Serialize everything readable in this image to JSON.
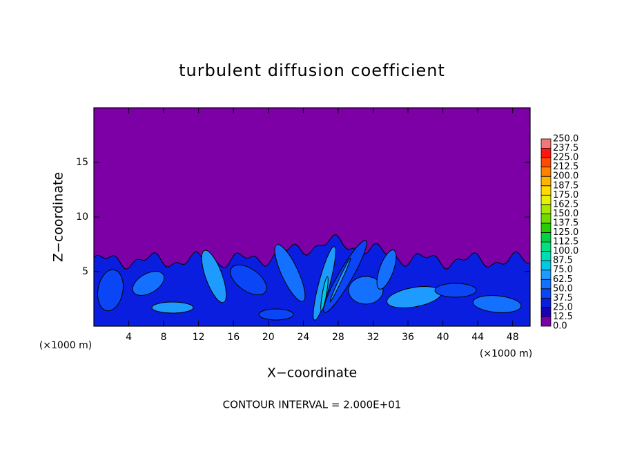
{
  "chart_data": {
    "type": "contour",
    "title": "turbulent diffusion coefficient",
    "xlabel": "X−coordinate",
    "ylabel": "Z−coordinate",
    "x_unit": "(×1000 m)",
    "y_unit": "(×1000 m)",
    "footer": "CONTOUR INTERVAL = 2.000E+01",
    "xlim": [
      0,
      50
    ],
    "xticks": [
      4,
      8,
      12,
      16,
      20,
      24,
      28,
      32,
      36,
      40,
      44,
      48
    ],
    "ylim": [
      0,
      20
    ],
    "yticks": [
      5,
      10,
      15
    ],
    "colorbar_levels": [
      {
        "value": 0,
        "label": "0.0"
      },
      {
        "value": 12.5,
        "label": "12.5"
      },
      {
        "value": 25,
        "label": "25.0"
      },
      {
        "value": 37.5,
        "label": "37.5"
      },
      {
        "value": 50,
        "label": "50.0"
      },
      {
        "value": 62.5,
        "label": "62.5"
      },
      {
        "value": 75,
        "label": "75.0"
      },
      {
        "value": 87.5,
        "label": "87.5"
      },
      {
        "value": 100,
        "label": "100.0"
      },
      {
        "value": 112.5,
        "label": "112.5"
      },
      {
        "value": 125,
        "label": "125.0"
      },
      {
        "value": 137.5,
        "label": "137.5"
      },
      {
        "value": 150,
        "label": "150.0"
      },
      {
        "value": 162.5,
        "label": "162.5"
      },
      {
        "value": 175,
        "label": "175.0"
      },
      {
        "value": 187.5,
        "label": "187.5"
      },
      {
        "value": 200,
        "label": "200.0"
      },
      {
        "value": 212.5,
        "label": "212.5"
      },
      {
        "value": 225,
        "label": "225.0"
      },
      {
        "value": 237.5,
        "label": "237.5"
      },
      {
        "value": 250,
        "label": "250.0"
      }
    ],
    "colorbar_colors": [
      "#7d00a6",
      "#1e00b4",
      "#0a1ee0",
      "#0a46f5",
      "#1470ff",
      "#1e9bff",
      "#00c8e6",
      "#00dcb4",
      "#00e080",
      "#00d246",
      "#28cd00",
      "#6edc00",
      "#aae600",
      "#e6f000",
      "#ffdc00",
      "#ffb400",
      "#ff8200",
      "#ff4b00",
      "#ff1414",
      "#f07878"
    ]
  }
}
